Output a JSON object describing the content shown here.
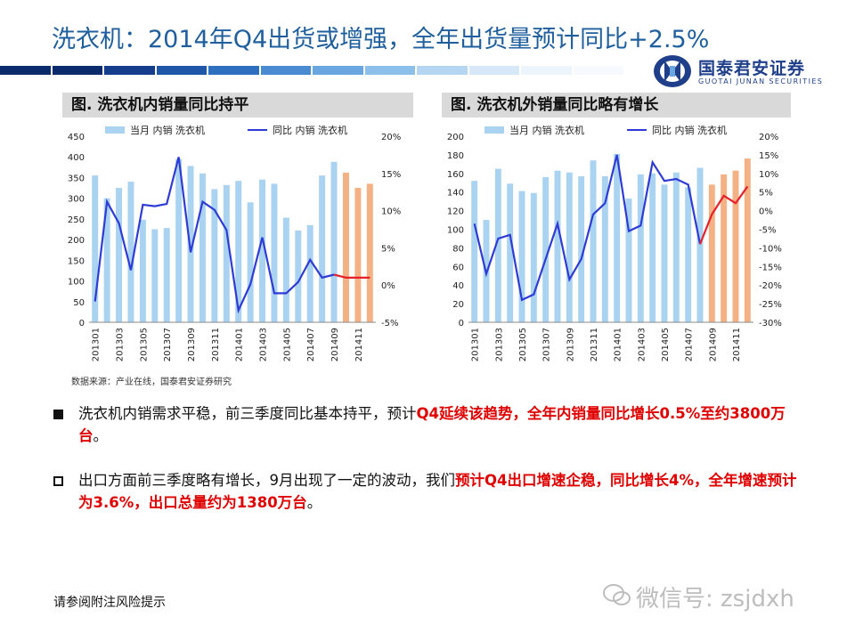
{
  "slide": {
    "title": "洗衣机：2014年Q4出货或增强，全年出货量预计同比+2.5%",
    "brand_name": "国泰君安证券",
    "brand_sub": "GUOTAI  JUNAN  SECURITIES",
    "source": "数据来源：产业在线，国泰君安证券研究",
    "footer": "请参阅附注风险提示",
    "watermark": "微信号: zsjdxh"
  },
  "bullets": [
    {
      "marker": "filled-square",
      "parts": [
        {
          "text": "洗衣机内销需求平稳，前三季度同比基本持平，预计",
          "red": false
        },
        {
          "text": "Q4延续该趋势，全年内销量同比增长0.5%至约3800万台",
          "red": true
        },
        {
          "text": "。",
          "red": false
        }
      ]
    },
    {
      "marker": "hollow-square",
      "parts": [
        {
          "text": "出口方面前三季度略有增长，9月出现了一定的波动，我们",
          "red": false
        },
        {
          "text": "预计Q4出口增速企稳，同比增长4%，全年增速预计为3.6%，出口总量约为1380万台",
          "red": true
        },
        {
          "text": "。",
          "red": false
        }
      ]
    }
  ],
  "colors": {
    "title": "#1f5f9e",
    "bar_actual": "#a9d3f0",
    "bar_forecast": "#f4b183",
    "line_actual": "#2e3bd6",
    "line_forecast": "#e8202a",
    "red_text": "#e00000",
    "header_bg": "#d9d9d9",
    "stripe": [
      "#0b2a6b",
      "#0b2a6b",
      "#163d8c",
      "#1f56a8",
      "#2f6fbf",
      "#4a8ad0",
      "#6aa6df",
      "#8cbfea",
      "#b5d6f2",
      "#d7e8f8",
      "#edf5fc",
      "#f6fafe"
    ]
  },
  "chart_data": [
    {
      "type": "bar",
      "title": "图. 洗衣机内销量同比持平",
      "categories": [
        "201301",
        "201302",
        "201303",
        "201304",
        "201305",
        "201306",
        "201307",
        "201308",
        "201309",
        "201310",
        "201311",
        "201312",
        "201401",
        "201402",
        "201403",
        "201404",
        "201405",
        "201406",
        "201407",
        "201408",
        "201409",
        "201410",
        "201411",
        "201412"
      ],
      "tick_labels": [
        "201301",
        "201303",
        "201305",
        "201307",
        "201309",
        "201311",
        "201401",
        "201403",
        "201405",
        "201407",
        "201409",
        "201411"
      ],
      "series": [
        {
          "name": "当月 内销 洗衣机",
          "kind": "bar",
          "axis": "left",
          "values": [
            355,
            300,
            325,
            340,
            248,
            225,
            228,
            395,
            378,
            360,
            322,
            332,
            342,
            290,
            345,
            335,
            253,
            222,
            235,
            355,
            388,
            362,
            325,
            335
          ]
        },
        {
          "name": "同比 内销 洗衣机",
          "kind": "line",
          "axis": "right",
          "values": [
            -2.2,
            11.2,
            8.3,
            2.0,
            10.8,
            10.6,
            10.9,
            17.2,
            4.4,
            11.2,
            10.1,
            7.4,
            -3.4,
            0.1,
            6.4,
            -1.1,
            -1.1,
            0.4,
            3.4,
            1.0,
            1.4,
            1.0,
            1.0,
            1.0
          ]
        }
      ],
      "forecast_from_index": 21,
      "ylim_left": [
        0,
        450
      ],
      "yticks_left": [
        0,
        50,
        100,
        150,
        200,
        250,
        300,
        350,
        400,
        450
      ],
      "ylim_right": [
        -5,
        20
      ],
      "yticks_right": [
        "-5%",
        "0%",
        "5%",
        "10%",
        "15%",
        "20%"
      ],
      "xlabel": "",
      "ylabel": "",
      "legend": "top"
    },
    {
      "type": "bar",
      "title": "图. 洗衣机外销量同比略有增长",
      "categories": [
        "201301",
        "201302",
        "201303",
        "201304",
        "201305",
        "201306",
        "201307",
        "201308",
        "201309",
        "201310",
        "201311",
        "201312",
        "201401",
        "201402",
        "201403",
        "201404",
        "201405",
        "201406",
        "201407",
        "201408",
        "201409",
        "201410",
        "201411",
        "201412"
      ],
      "tick_labels": [
        "201301",
        "201303",
        "201305",
        "201307",
        "201309",
        "201311",
        "201401",
        "201403",
        "201405",
        "201407",
        "201409",
        "201411"
      ],
      "series": [
        {
          "name": "当月 内销 洗衣机",
          "kind": "bar",
          "axis": "left",
          "values": [
            152,
            110,
            165,
            149,
            141,
            139,
            156,
            163,
            161,
            157,
            174,
            157,
            181,
            133,
            159,
            160,
            148,
            161,
            145,
            166,
            148,
            159,
            163,
            176
          ]
        },
        {
          "name": "同比 内销 洗衣机",
          "kind": "line",
          "axis": "right",
          "values": [
            -3.5,
            -17.0,
            -7.5,
            -6.5,
            -24.0,
            -22.5,
            -13.0,
            -3.5,
            -18.5,
            -13.0,
            -1.0,
            2.0,
            15.0,
            -5.5,
            -4.0,
            13.0,
            8.0,
            8.5,
            7.0,
            -9.0,
            -1.0,
            4.0,
            2.0,
            6.5
          ]
        }
      ],
      "forecast_from_index": 20,
      "ylim_left": [
        0,
        200
      ],
      "yticks_left": [
        0,
        20,
        40,
        60,
        80,
        100,
        120,
        140,
        160,
        180,
        200
      ],
      "ylim_right": [
        -30,
        20
      ],
      "yticks_right": [
        "-30%",
        "-25%",
        "-20%",
        "-15%",
        "-10%",
        "-5%",
        "0%",
        "5%",
        "10%",
        "15%",
        "20%"
      ],
      "xlabel": "",
      "ylabel": "",
      "legend": "top"
    }
  ]
}
